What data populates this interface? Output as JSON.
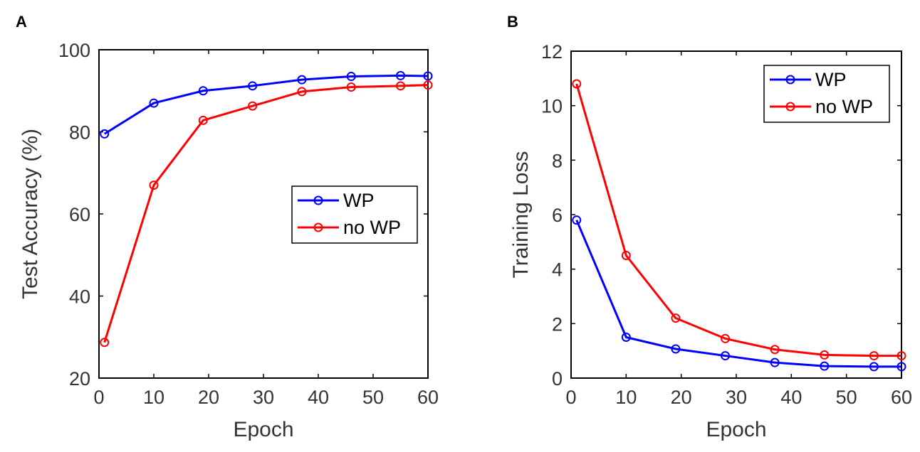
{
  "colors": {
    "wp": "#0000ff",
    "no_wp": "#ff0000",
    "axis": "#000000"
  },
  "chart_data": [
    {
      "panel_label": "A",
      "type": "line",
      "xlabel": "Epoch",
      "ylabel": "Test Accuracy (%)",
      "xlim": [
        0,
        60
      ],
      "ylim": [
        20,
        100
      ],
      "xticks": [
        0,
        10,
        20,
        30,
        40,
        50,
        60
      ],
      "yticks": [
        20,
        40,
        60,
        80,
        100
      ],
      "grid": false,
      "legend_position": "center-right",
      "series": [
        {
          "name": "WP",
          "color": "#0000ff",
          "x": [
            1,
            10,
            19,
            28,
            37,
            46,
            55,
            60
          ],
          "y": [
            79.5,
            87.0,
            90.0,
            91.2,
            92.7,
            93.5,
            93.7,
            93.6
          ]
        },
        {
          "name": "no WP",
          "color": "#ff0000",
          "x": [
            1,
            10,
            19,
            28,
            37,
            46,
            55,
            60
          ],
          "y": [
            28.7,
            67.0,
            82.8,
            86.3,
            89.8,
            90.9,
            91.2,
            91.4
          ]
        }
      ]
    },
    {
      "panel_label": "B",
      "type": "line",
      "xlabel": "Epoch",
      "ylabel": "Training Loss",
      "xlim": [
        0,
        60
      ],
      "ylim": [
        0,
        12
      ],
      "xticks": [
        0,
        10,
        20,
        30,
        40,
        50,
        60
      ],
      "yticks": [
        0,
        2,
        4,
        6,
        8,
        10,
        12
      ],
      "grid": false,
      "legend_position": "top-right",
      "series": [
        {
          "name": "WP",
          "color": "#0000ff",
          "x": [
            1,
            10,
            19,
            28,
            37,
            46,
            55,
            60
          ],
          "y": [
            5.8,
            1.5,
            1.07,
            0.82,
            0.57,
            0.44,
            0.42,
            0.42
          ]
        },
        {
          "name": "no WP",
          "color": "#ff0000",
          "x": [
            1,
            10,
            19,
            28,
            37,
            46,
            55,
            60
          ],
          "y": [
            10.8,
            4.5,
            2.2,
            1.45,
            1.05,
            0.85,
            0.82,
            0.82
          ]
        }
      ]
    }
  ]
}
